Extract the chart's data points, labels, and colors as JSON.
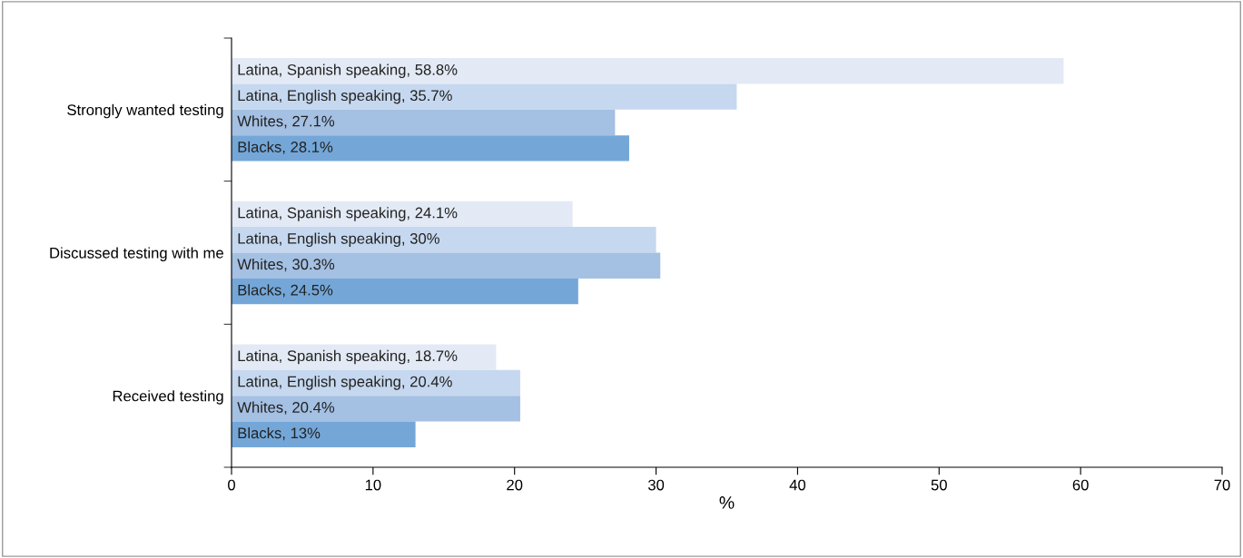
{
  "chart_data": {
    "type": "bar",
    "orientation": "horizontal",
    "xlabel": "%",
    "categories": [
      "Strongly wanted testing",
      "Discussed testing with me",
      "Received testing"
    ],
    "series": [
      {
        "color": "#e3eaf5",
        "values": [
          58.8,
          24.1,
          18.7
        ],
        "value_labels": [
          "Latina, Spanish speaking, 58.8%",
          "Latina, Spanish speaking, 24.1%",
          "Latina, Spanish speaking, 18.7%"
        ]
      },
      {
        "color": "#c6d8ef",
        "values": [
          35.7,
          30,
          20.4
        ],
        "value_labels": [
          "Latina, English speaking, 35.7%",
          "Latina, English speaking, 30%",
          "Latina, English speaking, 20.4%"
        ]
      },
      {
        "color": "#a4c0e3",
        "values": [
          27.1,
          30.3,
          20.4
        ],
        "value_labels": [
          "Whites, 27.1%",
          "Whites, 30.3%",
          "Whites, 20.4%"
        ]
      },
      {
        "color": "#74a7d8",
        "values": [
          28.1,
          24.5,
          13
        ],
        "value_labels": [
          "Blacks, 28.1%",
          "Blacks, 24.5%",
          "Blacks, 13%"
        ]
      }
    ],
    "xlim": [
      0,
      70
    ],
    "xticks": [
      0,
      10,
      20,
      30,
      40,
      50,
      60,
      70
    ],
    "grid": false,
    "legend": false
  }
}
